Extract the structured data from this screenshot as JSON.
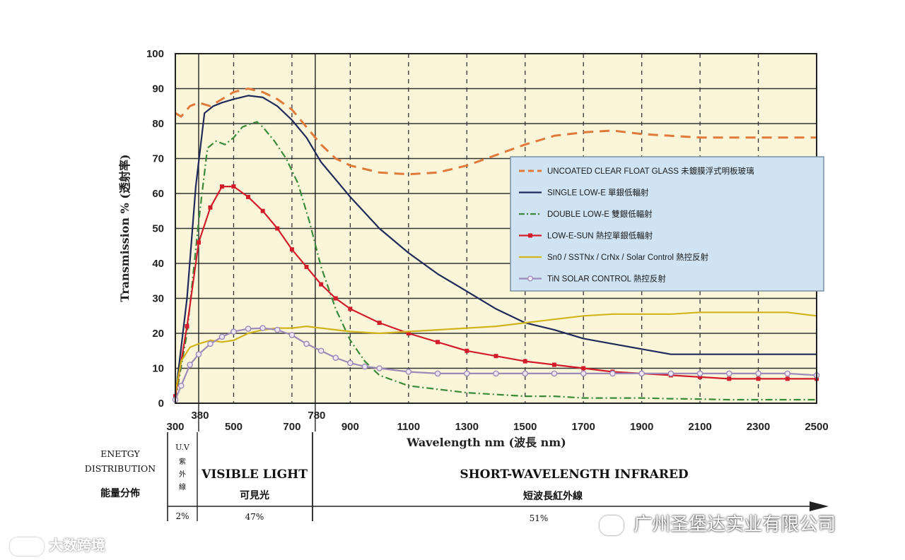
{
  "chart_data": {
    "type": "line",
    "ylabel": "Transmission % (透射率)",
    "xlabel": "Wavelength nm (波長 nm)",
    "xlim": [
      300,
      2500
    ],
    "ylim": [
      0,
      100
    ],
    "x_ticks": [
      300,
      500,
      700,
      900,
      1100,
      1300,
      1500,
      1700,
      1900,
      2100,
      2300,
      2500
    ],
    "x_extra_ticks": [
      380,
      780
    ],
    "y_ticks": [
      0,
      10,
      20,
      30,
      40,
      50,
      60,
      70,
      80,
      90,
      100
    ],
    "grid": true,
    "legend_position": "right",
    "series": [
      {
        "name": "UNCOATED CLEAR FLOAT GLASS 未鍍膜浮式明板玻璃",
        "color": "#e07a3a",
        "style": "dashed",
        "x": [
          300,
          320,
          350,
          380,
          420,
          460,
          500,
          550,
          600,
          650,
          700,
          750,
          800,
          850,
          900,
          1000,
          1100,
          1200,
          1300,
          1400,
          1500,
          1600,
          1700,
          1800,
          1900,
          2000,
          2100,
          2200,
          2300,
          2400,
          2500
        ],
        "y": [
          83,
          82,
          85,
          86,
          85,
          87,
          89,
          90,
          89,
          87,
          84,
          79,
          74,
          70,
          68,
          66,
          65.5,
          66,
          68,
          71,
          74,
          76.5,
          77.5,
          78,
          77,
          76.5,
          76,
          76,
          76,
          76,
          76
        ]
      },
      {
        "name": "SINGLE LOW-E 單銀低輻射",
        "color": "#1f2a5a",
        "style": "solid",
        "x": [
          300,
          340,
          370,
          400,
          430,
          460,
          500,
          550,
          600,
          650,
          700,
          750,
          800,
          900,
          1000,
          1100,
          1200,
          1300,
          1400,
          1500,
          1600,
          1700,
          1800,
          1900,
          2000,
          2100,
          2200,
          2300,
          2400,
          2500
        ],
        "y": [
          2,
          30,
          62,
          83,
          85,
          86,
          87,
          88,
          87.5,
          85,
          81,
          76,
          69,
          59,
          50,
          43,
          37,
          32,
          27,
          23,
          21,
          18.5,
          17,
          15.5,
          14,
          14,
          14,
          14,
          14,
          14
        ]
      },
      {
        "name": "DOUBLE LOW-E 雙銀低輻射",
        "color": "#3a8a3a",
        "style": "dashdot",
        "x": [
          300,
          340,
          380,
          410,
          440,
          470,
          500,
          530,
          560,
          580,
          600,
          640,
          680,
          720,
          760,
          800,
          850,
          900,
          950,
          1000,
          1100,
          1200,
          1300,
          1400,
          1500,
          1600,
          1700,
          1800,
          1900,
          2000,
          2100,
          2200,
          2300,
          2400,
          2500
        ],
        "y": [
          1,
          20,
          52,
          73,
          75,
          74,
          76,
          79,
          80,
          80.5,
          79,
          75,
          70,
          63,
          52,
          39,
          27,
          18,
          12,
          8,
          5,
          4,
          3,
          2.5,
          2,
          2,
          1.5,
          1.5,
          1.5,
          1.3,
          1.2,
          1,
          1,
          1,
          1
        ]
      },
      {
        "name": "LOW-E-SUN 熱控單銀低輻射",
        "color": "#d21c2c",
        "style": "solid-markers",
        "x": [
          300,
          340,
          380,
          420,
          460,
          500,
          550,
          600,
          650,
          700,
          750,
          800,
          850,
          900,
          1000,
          1100,
          1200,
          1300,
          1400,
          1500,
          1600,
          1700,
          1800,
          1900,
          2000,
          2100,
          2200,
          2300,
          2400,
          2500
        ],
        "y": [
          2,
          22,
          46,
          56,
          62,
          62,
          59,
          55,
          50,
          44,
          39,
          34,
          30,
          27,
          23,
          20,
          17.5,
          15,
          13.5,
          12,
          11,
          10,
          9,
          8.5,
          8,
          7.5,
          7,
          7,
          7,
          7
        ]
      },
      {
        "name": "Sn0 / SSTNx / CrNx / Solar Control 熱控反射",
        "color": "#d1b41c",
        "style": "solid",
        "x": [
          300,
          320,
          350,
          380,
          420,
          460,
          500,
          550,
          600,
          650,
          700,
          750,
          800,
          900,
          1000,
          1100,
          1200,
          1300,
          1400,
          1500,
          1600,
          1700,
          1800,
          1900,
          2000,
          2100,
          2200,
          2300,
          2400,
          2500
        ],
        "y": [
          3,
          12,
          16,
          17,
          18,
          17.5,
          18,
          20,
          21,
          21.5,
          21.5,
          22,
          21.5,
          20.5,
          20,
          20.5,
          21,
          21.5,
          22,
          23,
          24,
          25,
          25.5,
          25.5,
          25.5,
          26,
          26,
          26,
          26,
          25
        ]
      },
      {
        "name": "TiN SOLAR CONTROL 熱控反射",
        "color": "#9e8ab8",
        "style": "solid-markers",
        "x": [
          300,
          320,
          350,
          380,
          420,
          460,
          500,
          550,
          600,
          650,
          700,
          750,
          800,
          850,
          900,
          950,
          1000,
          1100,
          1200,
          1300,
          1400,
          1500,
          1600,
          1700,
          1800,
          1900,
          2000,
          2100,
          2200,
          2300,
          2400,
          2500
        ],
        "y": [
          1,
          5,
          11,
          14,
          17,
          19,
          20.5,
          21.3,
          21.5,
          21,
          19.5,
          17,
          15,
          13,
          11.5,
          10.5,
          10,
          9,
          8.5,
          8.5,
          8.5,
          8.5,
          8.5,
          8.5,
          8.5,
          8.5,
          8.5,
          8.5,
          8.5,
          8.5,
          8.5,
          8
        ]
      }
    ]
  },
  "energy": {
    "label_en_1": "ENETGY",
    "label_en_2": "DISTRIBUTION",
    "label_zh": "能量分佈",
    "uv_en": "U.V",
    "uv_zh_1": "紫",
    "uv_zh_2": "外",
    "uv_zh_3": "線",
    "uv_pct": "2%",
    "visible_en": "VISIBLE LIGHT",
    "visible_zh": "可見光",
    "visible_pct": "47%",
    "ir_en": "SHORT-WAVELENGTH INFRARED",
    "ir_zh": "短波長紅外線",
    "ir_pct": "51%"
  },
  "watermarks": {
    "left": "大数跨境",
    "right": "广州圣堡达实业有限公司"
  },
  "colors": {
    "plot_bg": "#fbf6d9",
    "legend_bg": "#cfe3f3",
    "grid": "#222222"
  }
}
